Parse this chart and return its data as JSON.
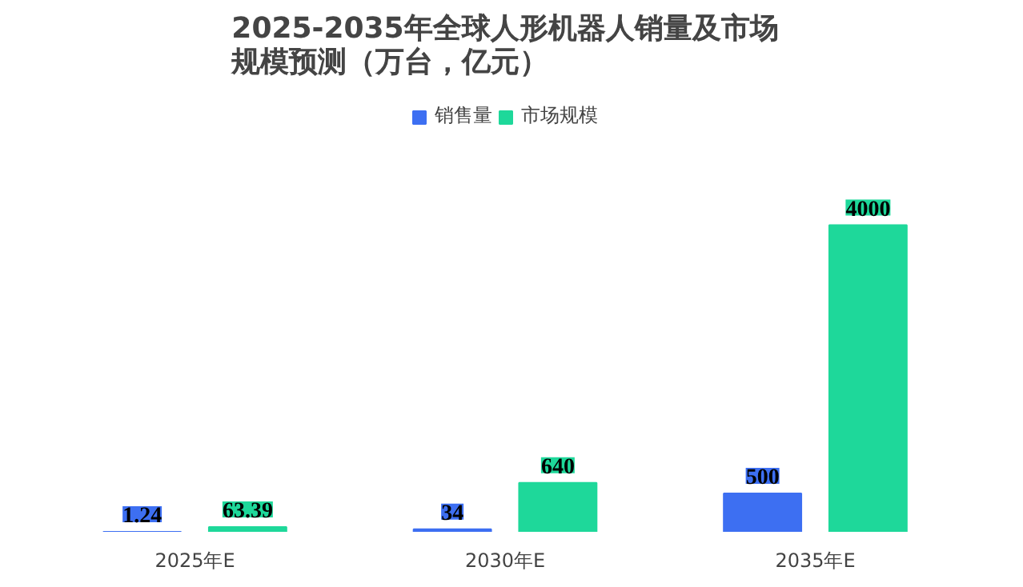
{
  "chart_data": {
    "type": "bar",
    "title": "2025-2035年全球人形机器人销量及市场规模预测（万台，亿元）",
    "categories": [
      "2025年E",
      "2030年E",
      "2035年E"
    ],
    "series": [
      {
        "name": "销售量",
        "color": "#3d6ff2",
        "values": [
          1.24,
          34,
          500
        ]
      },
      {
        "name": "市场规模",
        "color": "#1ed89a",
        "values": [
          63.39,
          640,
          4000
        ]
      }
    ],
    "data_labels": true,
    "legend": "top",
    "grid": false
  }
}
